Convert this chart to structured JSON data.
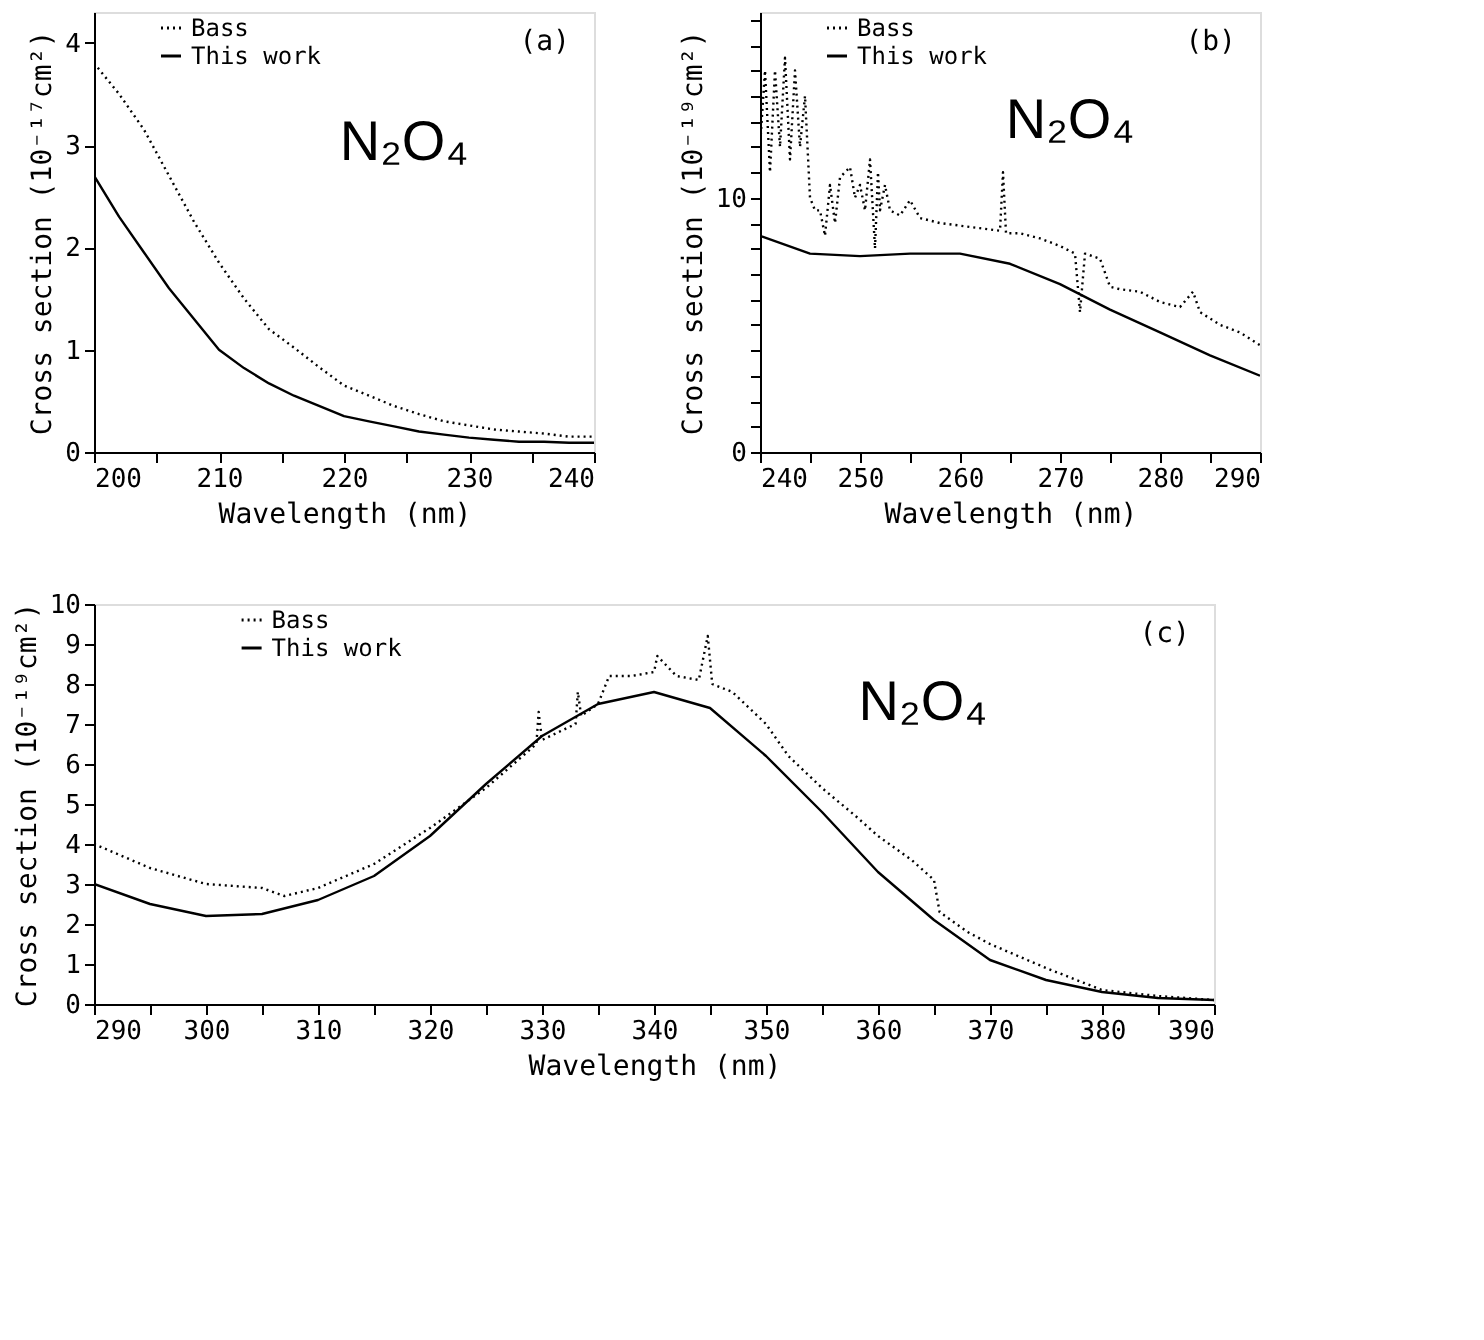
{
  "chart_data": [
    {
      "type": "line",
      "xlabel": "Wavelength (nm)",
      "ylabel": "Cross section (10⁻¹⁷cm²)",
      "annotations": [
        "(a)",
        "N₂O₄"
      ],
      "xlim": [
        200,
        240
      ],
      "ylim": [
        0,
        4.3
      ],
      "xticks": [
        200,
        {
          "value": 205,
          "label": null
        },
        210,
        {
          "value": 215,
          "label": null
        },
        220,
        {
          "value": 225,
          "label": null
        },
        230,
        {
          "value": 235,
          "label": null
        },
        240
      ],
      "yticks": [
        0,
        1,
        2,
        3,
        4
      ],
      "grid": false,
      "legend": "top left",
      "marker": "none",
      "series": [
        {
          "name": "Bass",
          "color": "#000000",
          "line_style": "dotted",
          "x": [
            200,
            202,
            204,
            206,
            208,
            210,
            212,
            214,
            216,
            218,
            220,
            222,
            224,
            226,
            228,
            230,
            232,
            234,
            236,
            238,
            240
          ],
          "values": [
            3.8,
            3.5,
            3.15,
            2.7,
            2.25,
            1.85,
            1.5,
            1.2,
            1.02,
            0.83,
            0.65,
            0.55,
            0.45,
            0.37,
            0.3,
            0.26,
            0.22,
            0.2,
            0.18,
            0.15,
            0.15
          ]
        },
        {
          "name": "This work",
          "color": "#000000",
          "line_style": "solid",
          "x": [
            200,
            202,
            204,
            206,
            208,
            210,
            212,
            214,
            216,
            218,
            220,
            222,
            224,
            226,
            228,
            230,
            232,
            234,
            236,
            238,
            240
          ],
          "values": [
            2.7,
            2.3,
            1.95,
            1.6,
            1.3,
            1.0,
            0.82,
            0.67,
            0.55,
            0.45,
            0.35,
            0.3,
            0.25,
            0.2,
            0.17,
            0.14,
            0.12,
            0.1,
            0.1,
            0.09,
            0.09
          ]
        }
      ]
    },
    {
      "type": "line",
      "xlabel": "Wavelength (nm)",
      "ylabel": "Cross section (10⁻¹⁹cm²)",
      "annotations": [
        "(b)",
        "N₂O₄"
      ],
      "xlim": [
        240,
        290
      ],
      "ylim": [
        0,
        17.3
      ],
      "xticks": [
        240,
        {
          "value": 245,
          "label": null
        },
        250,
        {
          "value": 255,
          "label": null
        },
        260,
        {
          "value": 265,
          "label": null
        },
        270,
        {
          "value": 275,
          "label": null
        },
        280,
        {
          "value": 285,
          "label": null
        },
        290
      ],
      "yticks": [
        0,
        {
          "value": 1,
          "label": null
        },
        {
          "value": 2,
          "label": null
        },
        {
          "value": 3,
          "label": null
        },
        {
          "value": 4,
          "label": null
        },
        {
          "value": 5,
          "label": null
        },
        {
          "value": 6,
          "label": null
        },
        {
          "value": 7,
          "label": null
        },
        {
          "value": 8,
          "label": null
        },
        {
          "value": 9,
          "label": null
        },
        10,
        {
          "value": 11,
          "label": null
        },
        {
          "value": 12,
          "label": null
        },
        {
          "value": 13,
          "label": null
        },
        {
          "value": 14,
          "label": null
        },
        {
          "value": 15,
          "label": null
        },
        {
          "value": 16,
          "label": null
        },
        {
          "value": 17,
          "label": null
        }
      ],
      "grid": false,
      "legend": "top left",
      "marker": "none",
      "series": [
        {
          "name": "Bass",
          "color": "#000000",
          "line_style": "dotted",
          "x": [
            240,
            240.5,
            241,
            241.5,
            242,
            242.5,
            243,
            243.5,
            244,
            244.5,
            245,
            245.5,
            246,
            246.5,
            247,
            247.5,
            248,
            249,
            249.5,
            250,
            250.5,
            251,
            251.5,
            251.8,
            252,
            252.5,
            253,
            254,
            255,
            256,
            258,
            260,
            262,
            264,
            264.3,
            264.6,
            266,
            268,
            270,
            271.5,
            272,
            272.5,
            274,
            275,
            276,
            278,
            280,
            282,
            283.3,
            284,
            286,
            288,
            290
          ],
          "values": [
            12,
            15,
            11,
            15,
            12,
            15.5,
            11.5,
            15,
            12,
            14,
            10,
            9.5,
            9.5,
            8.5,
            10.5,
            9,
            10.8,
            11.2,
            10,
            10.5,
            9.5,
            11.5,
            8,
            11,
            9.5,
            10.5,
            9.5,
            9.3,
            9.9,
            9.2,
            9.0,
            8.9,
            8.8,
            8.7,
            11,
            8.6,
            8.6,
            8.4,
            8.1,
            7.8,
            5.5,
            7.8,
            7.6,
            6.5,
            6.4,
            6.3,
            5.9,
            5.7,
            6.3,
            5.5,
            5.0,
            4.7,
            4.2
          ]
        },
        {
          "name": "This work",
          "color": "#000000",
          "line_style": "solid",
          "x": [
            240,
            245,
            250,
            255,
            260,
            265,
            270,
            275,
            280,
            285,
            290
          ],
          "values": [
            8.5,
            7.8,
            7.7,
            7.8,
            7.8,
            7.4,
            6.6,
            5.6,
            4.7,
            3.8,
            3.0
          ]
        }
      ]
    },
    {
      "type": "line",
      "xlabel": "Wavelength (nm)",
      "ylabel": "Cross section (10⁻¹⁹cm²)",
      "annotations": [
        "(c)",
        "N₂O₄"
      ],
      "xlim": [
        290,
        390
      ],
      "ylim": [
        0,
        10
      ],
      "xticks": [
        290,
        {
          "value": 295,
          "label": null
        },
        300,
        {
          "value": 305,
          "label": null
        },
        310,
        {
          "value": 315,
          "label": null
        },
        320,
        {
          "value": 325,
          "label": null
        },
        330,
        {
          "value": 335,
          "label": null
        },
        340,
        {
          "value": 345,
          "label": null
        },
        350,
        {
          "value": 355,
          "label": null
        },
        360,
        {
          "value": 365,
          "label": null
        },
        370,
        {
          "value": 375,
          "label": null
        },
        380,
        {
          "value": 385,
          "label": null
        },
        390
      ],
      "yticks": [
        0,
        1,
        2,
        3,
        4,
        5,
        6,
        7,
        8,
        9,
        10
      ],
      "grid": false,
      "legend": "top left",
      "marker": "none",
      "series": [
        {
          "name": "Bass",
          "color": "#000000",
          "line_style": "dotted",
          "x": [
            290,
            295,
            300,
            305,
            307,
            310,
            315,
            320,
            325,
            329.5,
            329.7,
            330,
            333,
            333.2,
            333.5,
            335,
            336,
            338,
            340,
            340.3,
            342,
            344,
            344.8,
            345.2,
            347,
            350,
            352,
            355,
            358,
            360,
            363,
            365,
            365.5,
            368,
            370,
            375,
            380,
            385,
            390
          ],
          "values": [
            4.0,
            3.4,
            3.0,
            2.9,
            2.7,
            2.9,
            3.5,
            4.4,
            5.4,
            6.5,
            7.3,
            6.6,
            7.0,
            7.8,
            7.2,
            7.5,
            8.2,
            8.2,
            8.3,
            8.7,
            8.2,
            8.1,
            9.2,
            8.0,
            7.8,
            7.0,
            6.2,
            5.4,
            4.7,
            4.2,
            3.6,
            3.1,
            2.3,
            1.8,
            1.5,
            0.9,
            0.35,
            0.2,
            0.1
          ]
        },
        {
          "name": "This work",
          "color": "#000000",
          "line_style": "solid",
          "x": [
            290,
            295,
            300,
            305,
            310,
            315,
            320,
            325,
            330,
            335,
            340,
            345,
            350,
            355,
            360,
            365,
            370,
            375,
            380,
            385,
            390
          ],
          "values": [
            3.0,
            2.5,
            2.2,
            2.25,
            2.6,
            3.2,
            4.2,
            5.5,
            6.7,
            7.5,
            7.8,
            7.4,
            6.2,
            4.8,
            3.3,
            2.1,
            1.1,
            0.6,
            0.3,
            0.15,
            0.1
          ]
        }
      ]
    }
  ]
}
